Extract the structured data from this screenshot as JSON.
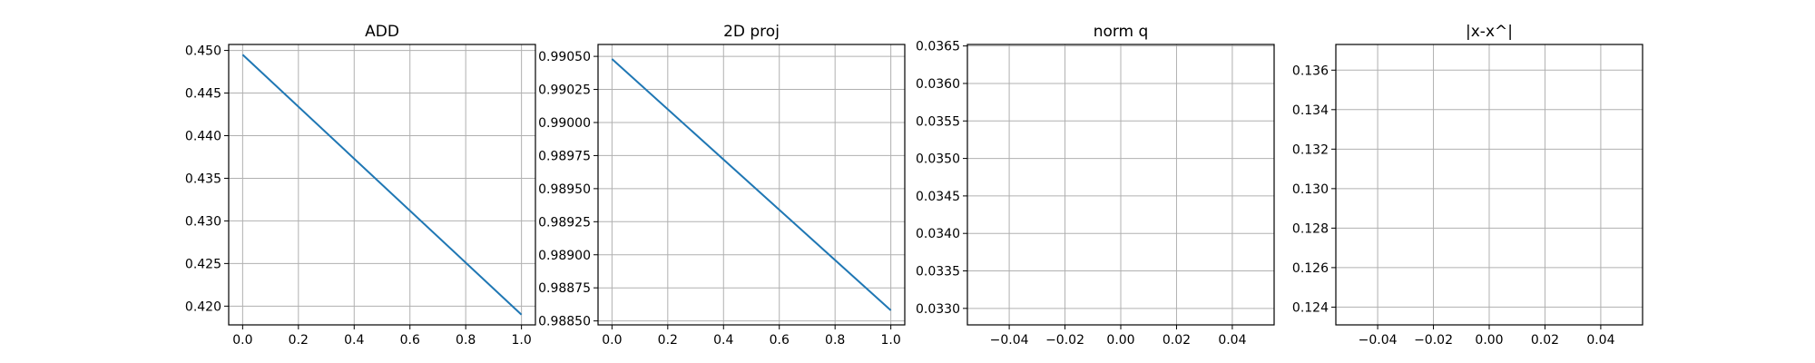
{
  "chart_data": [
    {
      "type": "line",
      "title": "ADD",
      "xlim": [
        -0.05,
        1.05
      ],
      "ylim": [
        0.4178,
        0.4507
      ],
      "xticks": [
        0.0,
        0.2,
        0.4,
        0.6,
        0.8,
        1.0
      ],
      "xtick_labels": [
        "0.0",
        "0.2",
        "0.4",
        "0.6",
        "0.8",
        "1.0"
      ],
      "yticks": [
        0.42,
        0.425,
        0.43,
        0.435,
        0.44,
        0.445,
        0.45
      ],
      "ytick_labels": [
        "0.420",
        "0.425",
        "0.430",
        "0.435",
        "0.440",
        "0.445",
        "0.450"
      ],
      "grid": true,
      "series": [
        {
          "x": [
            0,
            1
          ],
          "values": [
            0.4495,
            0.419
          ],
          "color": "#1f77b4"
        }
      ]
    },
    {
      "type": "line",
      "title": "2D proj",
      "xlim": [
        -0.05,
        1.05
      ],
      "ylim": [
        0.98847,
        0.99059
      ],
      "xticks": [
        0.0,
        0.2,
        0.4,
        0.6,
        0.8,
        1.0
      ],
      "xtick_labels": [
        "0.0",
        "0.2",
        "0.4",
        "0.6",
        "0.8",
        "1.0"
      ],
      "yticks": [
        0.9885,
        0.98875,
        0.989,
        0.98925,
        0.9895,
        0.98975,
        0.99,
        0.99025,
        0.9905
      ],
      "ytick_labels": [
        "0.98850",
        "0.98875",
        "0.98900",
        "0.98925",
        "0.98950",
        "0.98975",
        "0.99000",
        "0.99025",
        "0.99050"
      ],
      "grid": true,
      "series": [
        {
          "x": [
            0,
            1
          ],
          "values": [
            0.99048,
            0.98858
          ],
          "color": "#1f77b4"
        }
      ]
    },
    {
      "type": "line",
      "title": "norm q",
      "xlim": [
        -0.055,
        0.055
      ],
      "ylim": [
        0.03278,
        0.03652
      ],
      "xticks": [
        -0.04,
        -0.02,
        0.0,
        0.02,
        0.04
      ],
      "xtick_labels": [
        "−0.04",
        "−0.02",
        "0.00",
        "0.02",
        "0.04"
      ],
      "yticks": [
        0.033,
        0.0335,
        0.034,
        0.0345,
        0.035,
        0.0355,
        0.036,
        0.0365
      ],
      "ytick_labels": [
        "0.0330",
        "0.0335",
        "0.0340",
        "0.0345",
        "0.0350",
        "0.0355",
        "0.0360",
        "0.0365"
      ],
      "grid": true,
      "series": []
    },
    {
      "type": "line",
      "title": "|x-x^|",
      "xlim": [
        -0.055,
        0.055
      ],
      "ylim": [
        0.1231,
        0.1373
      ],
      "xticks": [
        -0.04,
        -0.02,
        0.0,
        0.02,
        0.04
      ],
      "xtick_labels": [
        "−0.04",
        "−0.02",
        "0.00",
        "0.02",
        "0.04"
      ],
      "yticks": [
        0.124,
        0.126,
        0.128,
        0.13,
        0.132,
        0.134,
        0.136
      ],
      "ytick_labels": [
        "0.124",
        "0.126",
        "0.128",
        "0.130",
        "0.132",
        "0.134",
        "0.136"
      ],
      "grid": true,
      "series": []
    }
  ]
}
